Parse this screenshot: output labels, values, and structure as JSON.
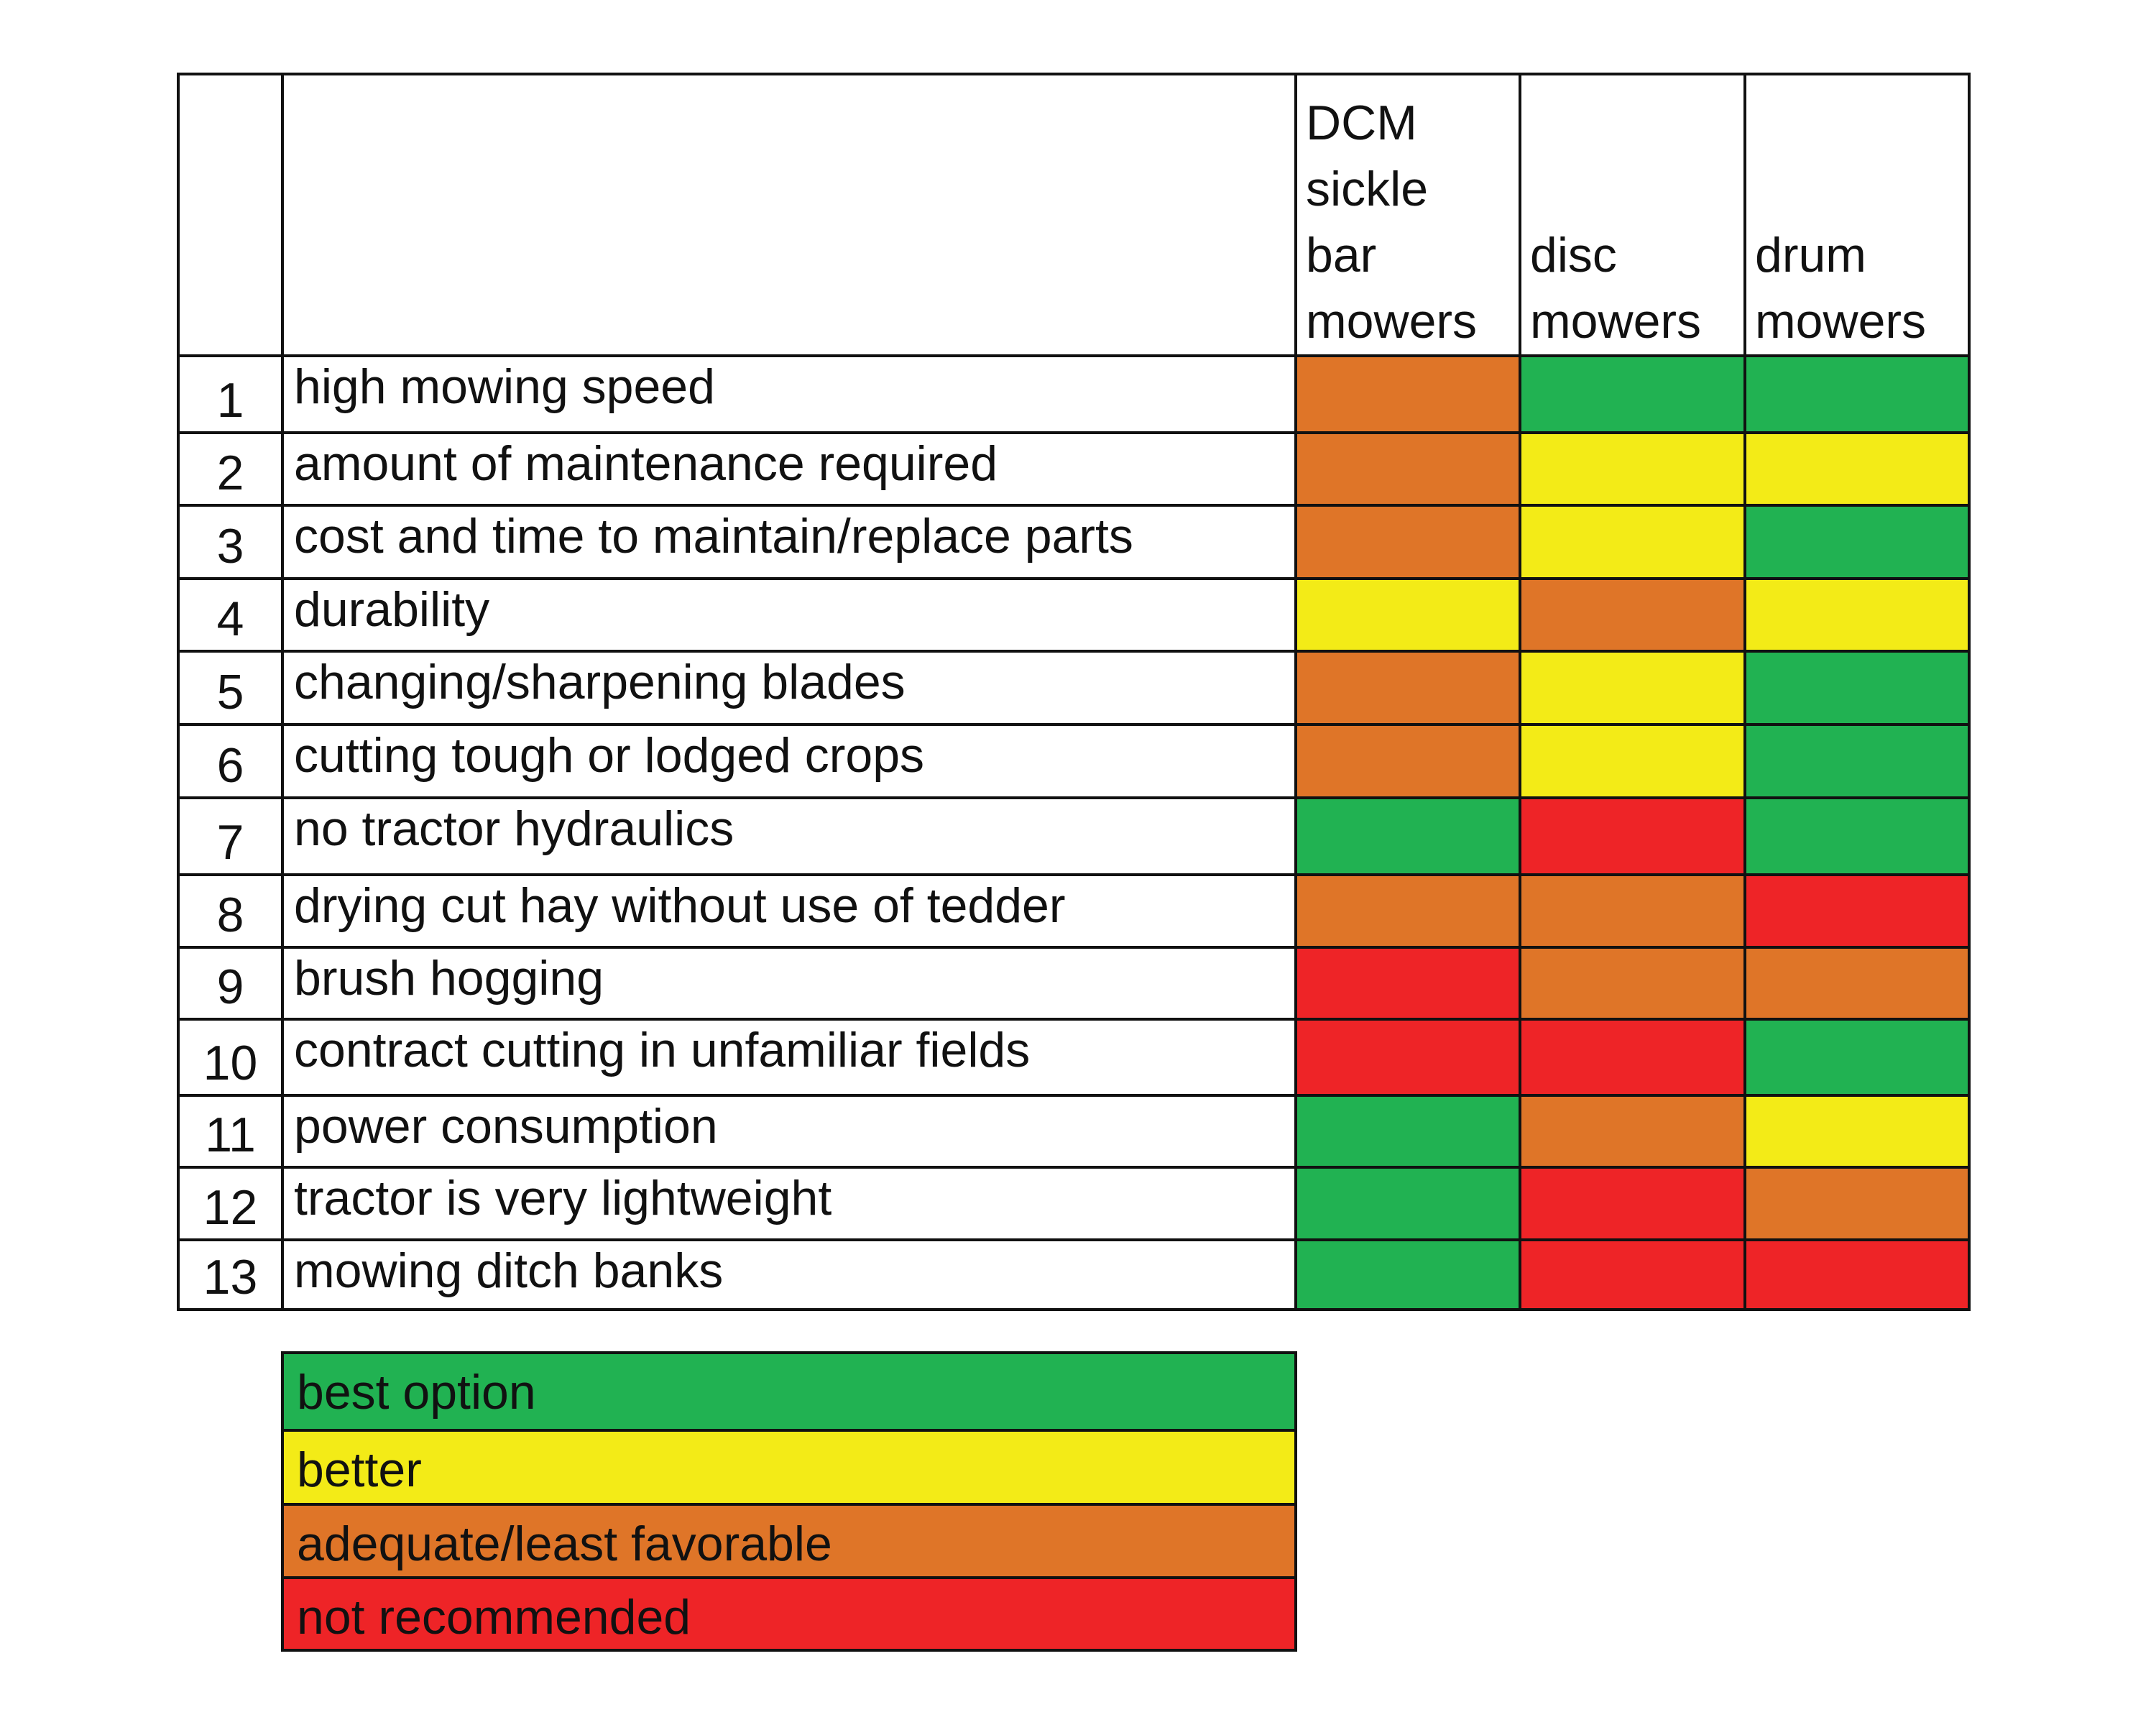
{
  "chart_data": {
    "type": "table",
    "columns": [
      "DCM sickle bar mowers",
      "disc mowers",
      "drum mowers"
    ],
    "column_header_lines": [
      [
        "DCM",
        "sickle",
        "bar",
        "mowers"
      ],
      [
        "disc",
        "mowers"
      ],
      [
        "drum",
        "mowers"
      ]
    ],
    "rows": [
      {
        "number": "1",
        "criterion": "high mowing speed",
        "ratings": [
          "adequate",
          "best",
          "best"
        ]
      },
      {
        "number": "2",
        "criterion": "amount of maintenance required",
        "ratings": [
          "adequate",
          "better",
          "better"
        ]
      },
      {
        "number": "3",
        "criterion": "cost and time to maintain/replace parts",
        "ratings": [
          "adequate",
          "better",
          "best"
        ]
      },
      {
        "number": "4",
        "criterion": "durability",
        "ratings": [
          "better",
          "adequate",
          "better"
        ]
      },
      {
        "number": "5",
        "criterion": "changing/sharpening blades",
        "ratings": [
          "adequate",
          "better",
          "best"
        ]
      },
      {
        "number": "6",
        "criterion": "cutting tough or lodged crops",
        "ratings": [
          "adequate",
          "better",
          "best"
        ]
      },
      {
        "number": "7",
        "criterion": "no tractor hydraulics",
        "ratings": [
          "best",
          "not",
          "best"
        ]
      },
      {
        "number": "8",
        "criterion": "drying cut hay without use of tedder",
        "ratings": [
          "adequate",
          "adequate",
          "not"
        ]
      },
      {
        "number": "9",
        "criterion": "brush hogging",
        "ratings": [
          "not",
          "adequate",
          "adequate"
        ]
      },
      {
        "number": "10",
        "criterion": "contract cutting in unfamiliar fields",
        "ratings": [
          "not",
          "not",
          "best"
        ]
      },
      {
        "number": "11",
        "criterion": "power consumption",
        "ratings": [
          "best",
          "adequate",
          "better"
        ]
      },
      {
        "number": "12",
        "criterion": "tractor is very lightweight",
        "ratings": [
          "best",
          "not",
          "adequate"
        ]
      },
      {
        "number": "13",
        "criterion": "mowing ditch banks",
        "ratings": [
          "best",
          "not",
          "not"
        ]
      }
    ],
    "legend": [
      {
        "key": "best",
        "label": "best option",
        "color": "#21b252"
      },
      {
        "key": "better",
        "label": "better",
        "color": "#f3eb17"
      },
      {
        "key": "adequate",
        "label": "adequate/least favorable",
        "color": "#df7528"
      },
      {
        "key": "not",
        "label": "not recommended",
        "color": "#ee2427"
      }
    ],
    "grid": true
  }
}
